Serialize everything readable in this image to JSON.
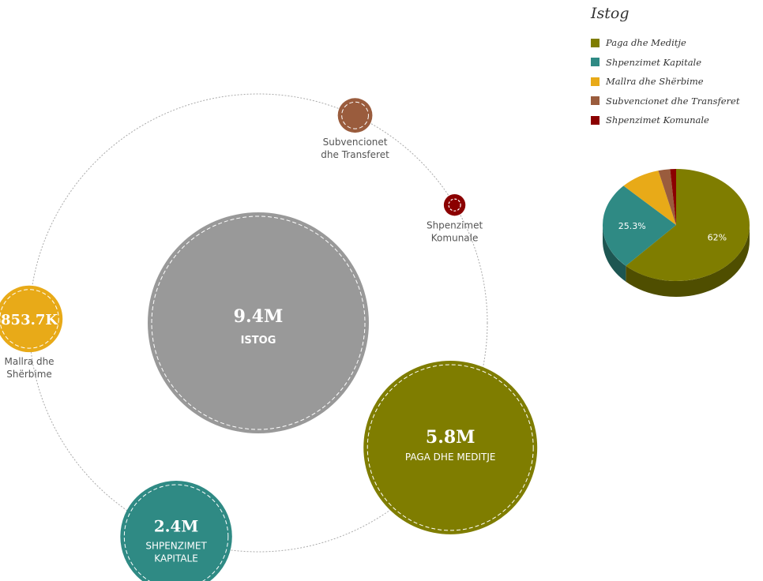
{
  "chart_data": [
    {
      "type": "bubble",
      "center": {
        "value": 9400000,
        "value_label": "9.4M",
        "label": "ISTOG"
      },
      "categories": [
        "Paga dhe Meditje",
        "Shpenzimet Kapitale",
        "Mallra dhe Shërbime",
        "Subvencionet dhe Transferet",
        "Shpenzimet Komunale"
      ],
      "items": [
        {
          "name": "Paga dhe Meditje",
          "value": 5800000,
          "value_label": "5.8M",
          "label_lines": [
            "PAGA DHE MEDITJE"
          ],
          "color": "#7f7d00"
        },
        {
          "name": "Shpenzimet Kapitale",
          "value": 2400000,
          "value_label": "2.4M",
          "label_lines": [
            "SHPENZIMET",
            "KAPITALE"
          ],
          "color": "#2f8a84"
        },
        {
          "name": "Mallra dhe Shërbime",
          "value": 853700,
          "value_label": "853.7K",
          "label_lines": [
            "Mallra dhe",
            "Shërbime"
          ],
          "color": "#e8aa18"
        },
        {
          "name": "Subvencionet dhe Transferet",
          "value": 230000,
          "value_label": "",
          "label_lines": [
            "Subvencionet",
            "dhe Transferet"
          ],
          "color": "#9a5c3d"
        },
        {
          "name": "Shpenzimet Komunale",
          "value": 90000,
          "value_label": "",
          "label_lines": [
            "Shpenzimet",
            "Komunale"
          ],
          "color": "#8b0000"
        }
      ]
    },
    {
      "type": "pie",
      "title": "Istog",
      "legend_position": "top-right",
      "slices": [
        {
          "name": "Paga dhe Meditje",
          "value": 62,
          "label": "62%",
          "color": "#7f7d00"
        },
        {
          "name": "Shpenzimet Kapitale",
          "value": 25.3,
          "label": "25.3%",
          "color": "#2f8a84"
        },
        {
          "name": "Mallra dhe Shërbime",
          "value": 8.8,
          "label": "",
          "color": "#e8aa18"
        },
        {
          "name": "Subvencionet dhe Transferet",
          "value": 2.6,
          "label": "",
          "color": "#9a5c3d"
        },
        {
          "name": "Shpenzimet Komunale",
          "value": 1.3,
          "label": "",
          "color": "#8b0000"
        }
      ]
    }
  ],
  "legend": {
    "title": "Istog",
    "items": [
      {
        "label": "Paga dhe Meditje",
        "color": "#7f7d00"
      },
      {
        "label": "Shpenzimet Kapitale",
        "color": "#2f8a84"
      },
      {
        "label": "Mallra dhe Shërbime",
        "color": "#e8aa18"
      },
      {
        "label": "Subvencionet dhe Transferet",
        "color": "#9a5c3d"
      },
      {
        "label": "Shpenzimet Komunale",
        "color": "#8b0000"
      }
    ]
  },
  "colors": {
    "center_bubble": "#999999",
    "orbit": "#aaaaaa"
  }
}
